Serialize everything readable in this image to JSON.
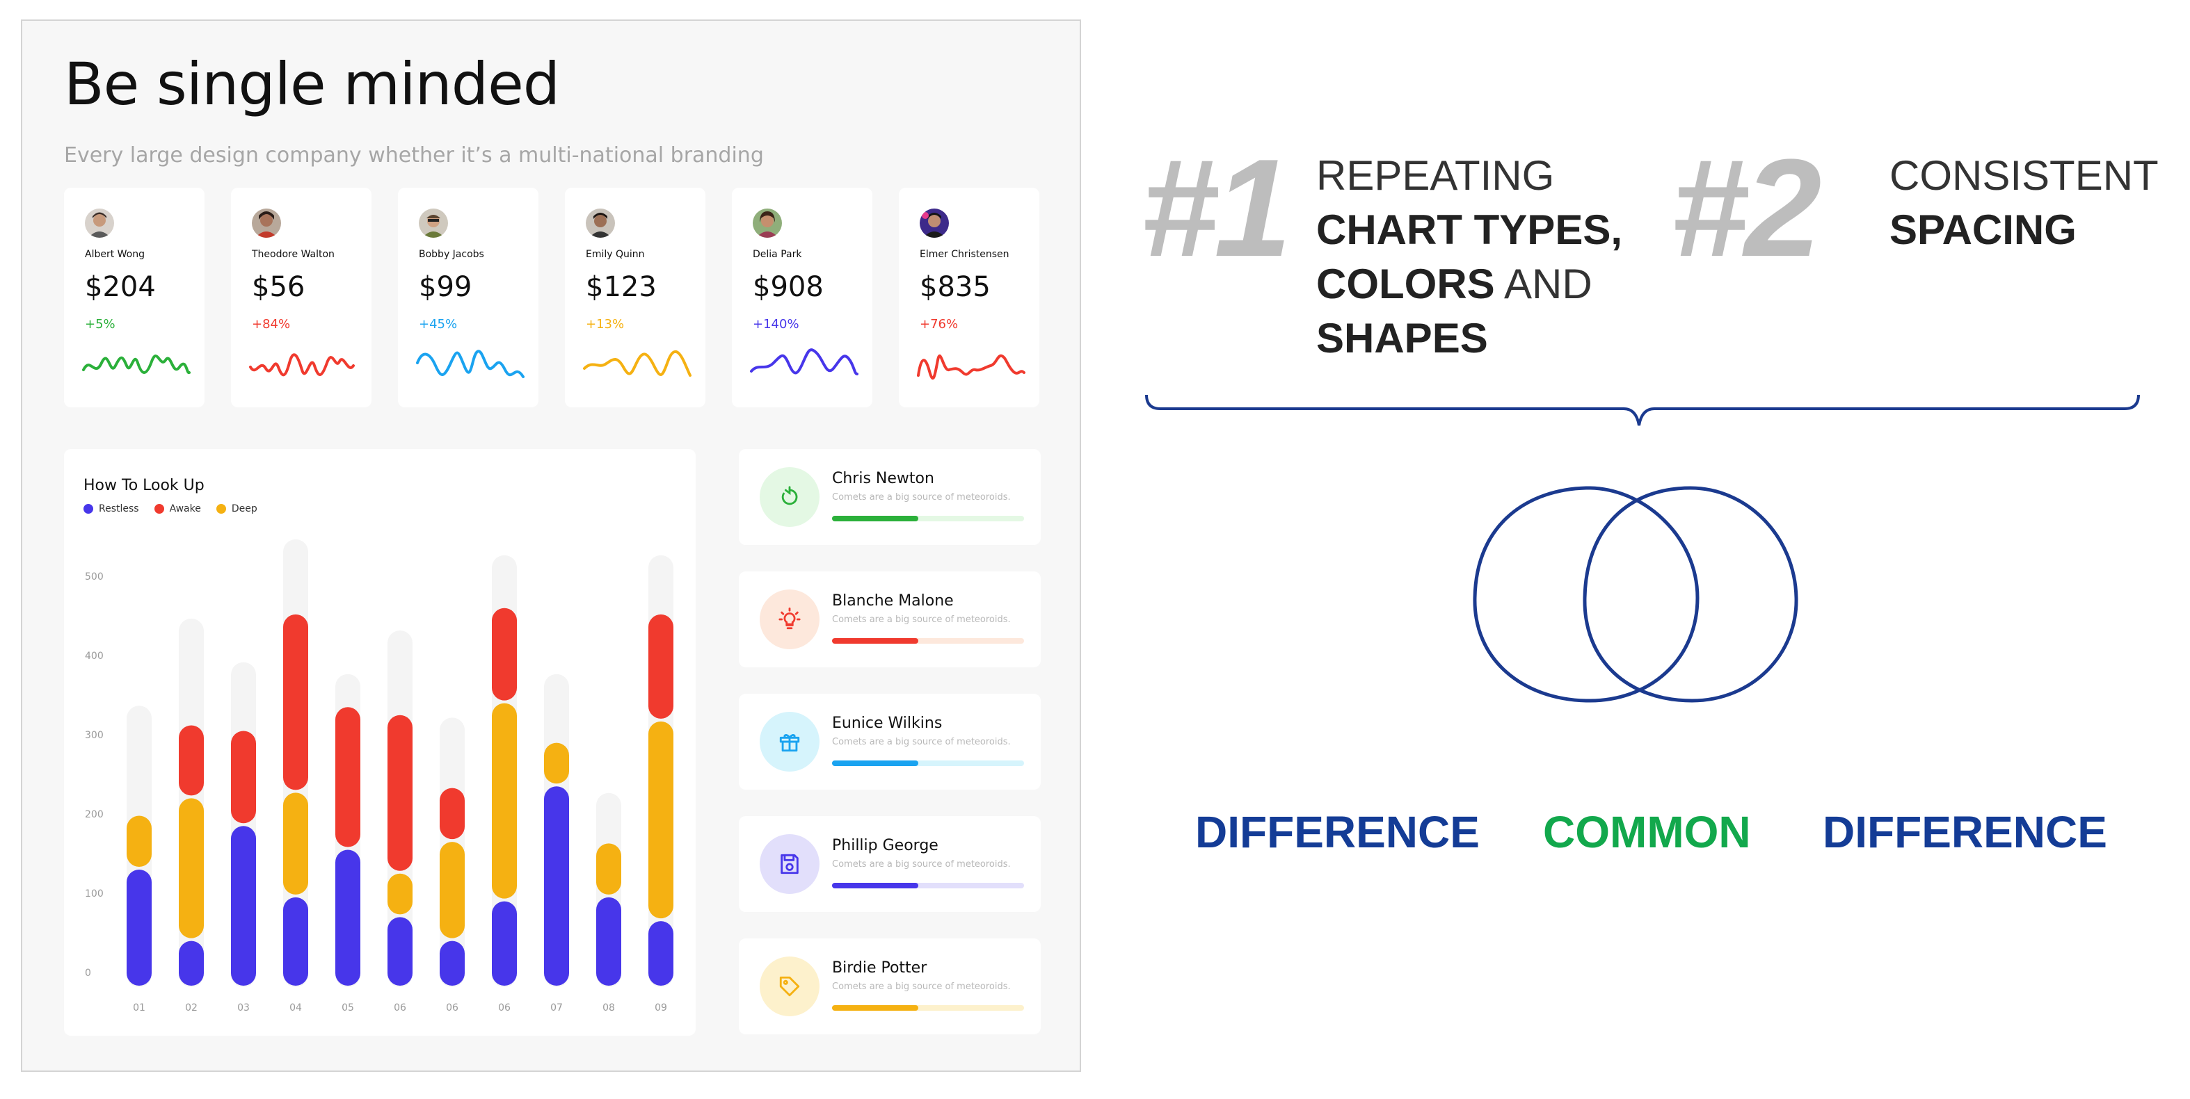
{
  "dashboard": {
    "title": "Be single minded",
    "subtitle": "Every large design company whether it’s a multi-national branding",
    "cards": [
      {
        "name": "Albert Wong",
        "value": "$204",
        "change": "+5%",
        "color": "#2bb03a"
      },
      {
        "name": "Theodore Walton",
        "value": "$56",
        "change": "+84%",
        "color": "#f03a2e"
      },
      {
        "name": "Bobby Jacobs",
        "value": "$99",
        "change": "+45%",
        "color": "#1aa3f0"
      },
      {
        "name": "Emily Quinn",
        "value": "$123",
        "change": "+13%",
        "color": "#f5b112"
      },
      {
        "name": "Delia Park",
        "value": "$908",
        "change": "+140%",
        "color": "#4736ea"
      },
      {
        "name": "Elmer Christensen",
        "value": "$835",
        "change": "+76%",
        "color": "#f03a2e"
      }
    ],
    "people": [
      {
        "name": "Chris Newton",
        "desc": "Comets are a big source of meteoroids.",
        "icon": "refresh-icon",
        "color": "#2bb03a",
        "tint": "#e4f8e4",
        "progress": 0.45
      },
      {
        "name": "Blanche Malone",
        "desc": "Comets are a big source of meteoroids.",
        "icon": "lightbulb-icon",
        "color": "#f03a2e",
        "tint": "#fde8dc",
        "progress": 0.45
      },
      {
        "name": "Eunice Wilkins",
        "desc": "Comets are a big source of meteoroids.",
        "icon": "gift-icon",
        "color": "#1aa3f0",
        "tint": "#d6f4fc",
        "progress": 0.45
      },
      {
        "name": "Phillip George",
        "desc": "Comets are a big source of meteoroids.",
        "icon": "save-icon",
        "color": "#4736ea",
        "tint": "#e2dffb",
        "progress": 0.45
      },
      {
        "name": "Birdie Potter",
        "desc": "Comets are a big source of meteoroids.",
        "icon": "tag-icon",
        "color": "#f5b112",
        "tint": "#fdf1cc",
        "progress": 0.45
      }
    ]
  },
  "chart_data": {
    "type": "bar",
    "title": "How To Look Up",
    "legend": [
      "Restless",
      "Awake",
      "Deep"
    ],
    "colors": {
      "Restless": "#4736ea",
      "Awake": "#f03a2e",
      "Deep": "#f5b112",
      "track": "#f4f4f4"
    },
    "categories": [
      "01",
      "02",
      "03",
      "04",
      "05",
      "06",
      "06",
      "06",
      "07",
      "08",
      "09"
    ],
    "y_ticks": [
      "0",
      "100",
      "200",
      "300",
      "400",
      "500"
    ],
    "ylim": [
      0,
      500
    ],
    "series": [
      {
        "name": "Restless",
        "values": [
          150,
          60,
          205,
          115,
          175,
          90,
          60,
          110,
          255,
          115,
          85
        ]
      },
      {
        "name": "Awake",
        "values": [
          0,
          92,
          120,
          225,
          180,
          200,
          68,
          120,
          0,
          0,
          135
        ]
      },
      {
        "name": "Deep",
        "values": [
          68,
          180,
          0,
          132,
          0,
          55,
          125,
          250,
          55,
          68,
          252
        ]
      }
    ],
    "track_totals": [
      355,
      465,
      410,
      565,
      395,
      450,
      340,
      545,
      395,
      245,
      545
    ]
  },
  "explainer": {
    "point1": {
      "number": "#1",
      "line1": "REPEATING",
      "line2": "CHART TYPES,",
      "line3_bold": "COLORS",
      "line3_rest": " AND",
      "line4": "SHAPES"
    },
    "point2": {
      "number": "#2",
      "line1": "CONSISTENT",
      "line2": "SPACING"
    },
    "venn": {
      "left": "DIFFERENCE",
      "middle": "COMMON",
      "right": "DIFFERENCE"
    },
    "colors": {
      "brace": "#1b3a8f",
      "difference": "#143c96",
      "common": "#12a84c"
    }
  }
}
